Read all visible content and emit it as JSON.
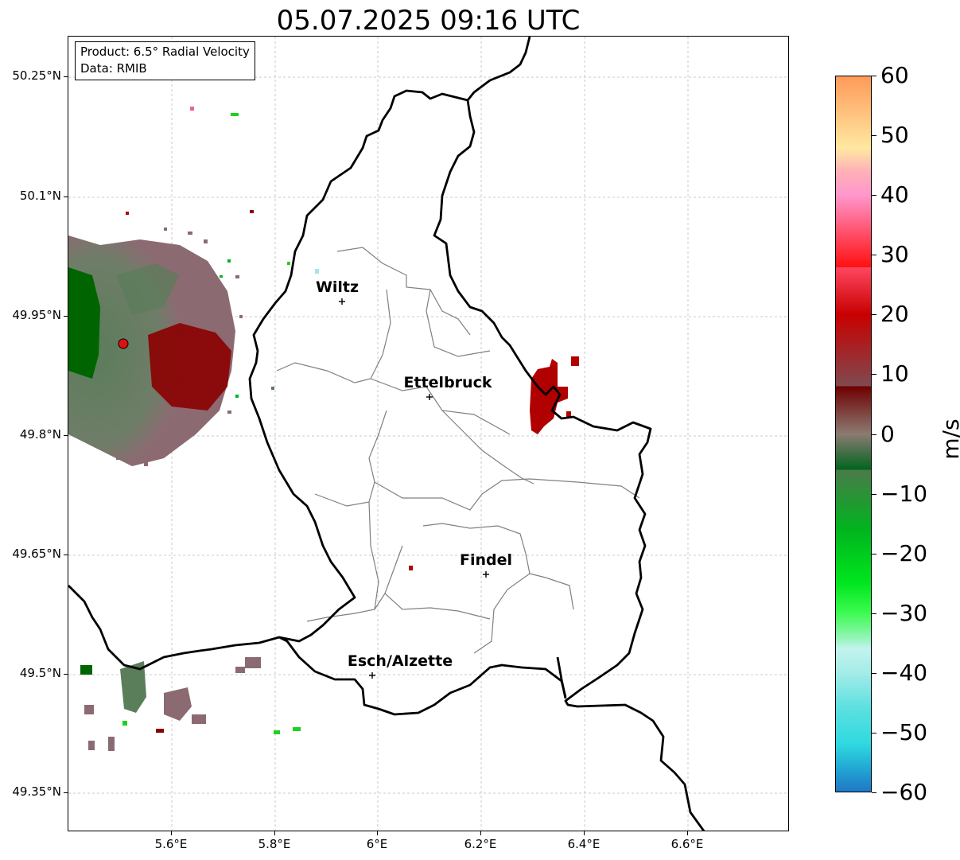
{
  "title": "05.07.2025 09:16 UTC",
  "infobox": {
    "product": "Product: 6.5° Radial Velocity",
    "data": "Data: RMIB"
  },
  "axes": {
    "lat_labels": [
      "50.25°N",
      "50.1°N",
      "49.95°N",
      "49.8°N",
      "49.65°N",
      "49.5°N",
      "49.35°N"
    ],
    "lon_labels": [
      "5.6°E",
      "5.8°E",
      "6°E",
      "6.2°E",
      "6.4°E",
      "6.6°E"
    ]
  },
  "colorbar": {
    "units": "m/s",
    "min": -60,
    "max": 60,
    "tick_labels": [
      "60",
      "50",
      "40",
      "30",
      "20",
      "10",
      "0",
      "−10",
      "−20",
      "−30",
      "−40",
      "−50",
      "−60"
    ],
    "stops": [
      {
        "v": -60,
        "c": "#1f78c4"
      },
      {
        "v": -56,
        "c": "#22a8d4"
      },
      {
        "v": -52,
        "c": "#2fd9e0"
      },
      {
        "v": -46,
        "c": "#5ce0e0"
      },
      {
        "v": -40,
        "c": "#a5ece8"
      },
      {
        "v": -36,
        "c": "#c3f3ee"
      },
      {
        "v": -34,
        "c": "#8ef5b0"
      },
      {
        "v": -30,
        "c": "#3cfa50"
      },
      {
        "v": -25,
        "c": "#00e61e"
      },
      {
        "v": -16,
        "c": "#00b41e"
      },
      {
        "v": -6,
        "c": "#00641e"
      },
      {
        "v": -6,
        "c": "#4a7a4a"
      },
      {
        "v": 0,
        "c": "#8c7a72"
      },
      {
        "v": 8,
        "c": "#7f4a50"
      },
      {
        "v": 8,
        "c": "#6e0000"
      },
      {
        "v": 20,
        "c": "#c80000"
      },
      {
        "v": 28,
        "c": "#ff1010"
      },
      {
        "v": 28,
        "c": "#ff4660"
      },
      {
        "v": 40,
        "c": "#ff96cc"
      },
      {
        "v": 44,
        "c": "#ffb0b8"
      },
      {
        "v": 48,
        "c": "#ffe8a0"
      },
      {
        "v": 60,
        "c": "#ff9a5a"
      }
    ]
  },
  "cities": [
    {
      "name": "Wiltz"
    },
    {
      "name": "Ettelbruck"
    },
    {
      "name": "Findel"
    },
    {
      "name": "Esch/Alzette"
    }
  ],
  "colors": {
    "velocity_green_dark": "#006400",
    "velocity_green_mid": "#5a7d5a",
    "velocity_mauve": "#8c6a72",
    "velocity_red": "#8b0000",
    "velocity_bright_red": "#b00000",
    "radar_site": "#e01010"
  }
}
